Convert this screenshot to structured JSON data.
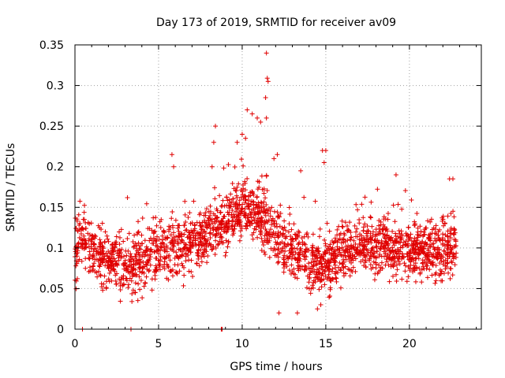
{
  "chart_data": {
    "type": "scatter",
    "title": "Day 173 of 2019, SRMTID for receiver av09",
    "xlabel": "GPS time / hours",
    "ylabel": "SRMTID / TECUs",
    "xlim": [
      0,
      24.3
    ],
    "ylim": [
      0,
      0.35
    ],
    "grid": true,
    "marker": "+",
    "color": "#e00000",
    "x_ticks": [
      0,
      5,
      10,
      15,
      20
    ],
    "x_tick_labels": [
      "0",
      "5",
      "10",
      "15",
      "20"
    ],
    "y_ticks": [
      0,
      0.05,
      0.1,
      0.15,
      0.2,
      0.25,
      0.3,
      0.35
    ],
    "y_tick_labels": [
      "0",
      "0.05",
      "0.1",
      "0.15",
      "0.2",
      "0.25",
      "0.3",
      "0.35"
    ],
    "series": [
      {
        "name": "SRMTID",
        "trend_x": [
          0,
          0.5,
          1,
          2,
          3,
          4,
          5,
          6,
          7,
          8,
          9,
          10,
          11,
          12,
          13,
          14,
          15,
          16,
          17,
          18,
          19,
          20,
          21,
          22,
          22.8
        ],
        "trend_y": [
          0.095,
          0.11,
          0.1,
          0.085,
          0.075,
          0.085,
          0.095,
          0.1,
          0.105,
          0.12,
          0.13,
          0.15,
          0.14,
          0.115,
          0.1,
          0.085,
          0.075,
          0.095,
          0.105,
          0.1,
          0.1,
          0.095,
          0.095,
          0.095,
          0.1
        ],
        "spread": 0.028,
        "sample_count": 2300,
        "peaks": [
          {
            "x": 11.45,
            "y": 0.34
          },
          {
            "x": 11.5,
            "y": 0.309
          },
          {
            "x": 11.55,
            "y": 0.305
          },
          {
            "x": 11.4,
            "y": 0.285
          },
          {
            "x": 11.45,
            "y": 0.26
          },
          {
            "x": 10.3,
            "y": 0.27
          },
          {
            "x": 10.6,
            "y": 0.265
          },
          {
            "x": 10.9,
            "y": 0.26
          },
          {
            "x": 11.1,
            "y": 0.255
          },
          {
            "x": 10.0,
            "y": 0.24
          },
          {
            "x": 9.7,
            "y": 0.23
          },
          {
            "x": 10.2,
            "y": 0.235
          },
          {
            "x": 8.4,
            "y": 0.25
          },
          {
            "x": 8.3,
            "y": 0.23
          },
          {
            "x": 8.2,
            "y": 0.2
          },
          {
            "x": 5.8,
            "y": 0.215
          },
          {
            "x": 5.9,
            "y": 0.2
          },
          {
            "x": 11.9,
            "y": 0.21
          },
          {
            "x": 12.1,
            "y": 0.215
          },
          {
            "x": 14.8,
            "y": 0.22
          },
          {
            "x": 15.0,
            "y": 0.22
          },
          {
            "x": 14.9,
            "y": 0.205
          },
          {
            "x": 19.2,
            "y": 0.19
          },
          {
            "x": 13.5,
            "y": 0.195
          },
          {
            "x": 22.6,
            "y": 0.185
          },
          {
            "x": 22.4,
            "y": 0.185
          }
        ],
        "lows": [
          {
            "x": 0.45,
            "y": 0.0
          },
          {
            "x": 3.35,
            "y": 0.0
          },
          {
            "x": 8.75,
            "y": 0.0
          },
          {
            "x": 8.8,
            "y": 0.0
          },
          {
            "x": 12.2,
            "y": 0.02
          },
          {
            "x": 13.3,
            "y": 0.02
          },
          {
            "x": 14.5,
            "y": 0.025
          },
          {
            "x": 14.7,
            "y": 0.03
          }
        ]
      }
    ]
  }
}
